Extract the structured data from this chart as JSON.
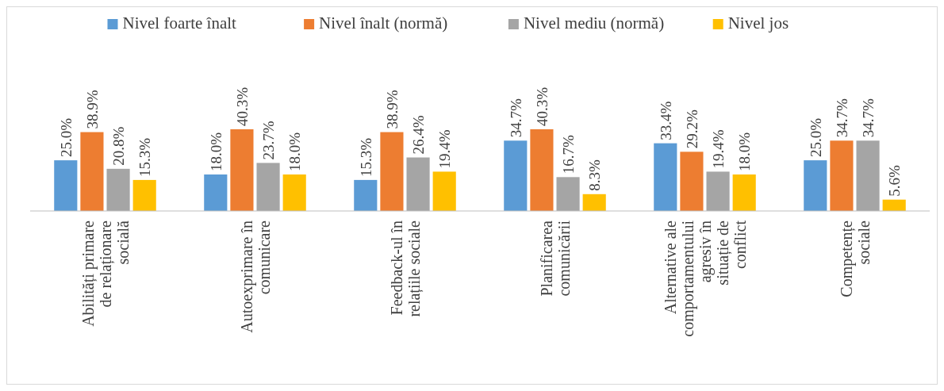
{
  "chart_data": {
    "type": "bar",
    "categories": [
      "Abilități primare de relaționare socială",
      "Autoexprimare în comunicare",
      "Feedback-ul în relațiile sociale",
      "Planificarea comunicării",
      "Alternative ale comportamentului agresiv în situație de conflict",
      "Competențe sociale"
    ],
    "series": [
      {
        "name": "Nivel foarte înalt",
        "color": "#5b9bd5",
        "values": [
          25.0,
          18.0,
          15.3,
          34.7,
          33.4,
          25.0
        ],
        "value_labels": [
          "25.0%",
          "18.0%",
          "15.3%",
          "34.7%",
          "33.4%",
          "25.0%"
        ]
      },
      {
        "name": "Nivel înalt (normă)",
        "color": "#ed7d31",
        "values": [
          38.9,
          40.3,
          38.9,
          40.3,
          29.2,
          34.7
        ],
        "value_labels": [
          "38.9%",
          "40.3%",
          "38.9%",
          "40.3%",
          "29.2%",
          "34.7%"
        ]
      },
      {
        "name": "Nivel mediu (normă)",
        "color": "#a5a5a5",
        "values": [
          20.8,
          23.7,
          26.4,
          16.7,
          19.4,
          34.7
        ],
        "value_labels": [
          "20.8%",
          "23.7%",
          "26.4%",
          "16.7%",
          "19.4%",
          "34.7%"
        ]
      },
      {
        "name": "Nivel jos",
        "color": "#ffc000",
        "values": [
          15.3,
          18.0,
          19.4,
          8.3,
          18.0,
          5.6
        ],
        "value_labels": [
          "15.3%",
          "18.0%",
          "19.4%",
          "8.3%",
          "18.0%",
          "5.6%"
        ]
      }
    ],
    "legend": "top"
  }
}
